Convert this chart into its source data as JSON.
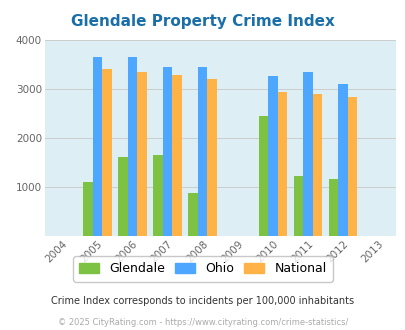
{
  "title": "Glendale Property Crime Index",
  "years": [
    2004,
    2005,
    2006,
    2007,
    2008,
    2009,
    2010,
    2011,
    2012,
    2013
  ],
  "data_years": [
    2005,
    2006,
    2007,
    2008,
    2010,
    2011,
    2012
  ],
  "glendale": [
    1100,
    1600,
    1650,
    880,
    2450,
    1220,
    1160
  ],
  "ohio": [
    3650,
    3650,
    3450,
    3450,
    3250,
    3350,
    3100
  ],
  "national": [
    3400,
    3350,
    3280,
    3200,
    2940,
    2900,
    2840
  ],
  "ylim": [
    0,
    4000
  ],
  "yticks": [
    0,
    1000,
    2000,
    3000,
    4000
  ],
  "color_glendale": "#7dc242",
  "color_ohio": "#4da6ff",
  "color_national": "#ffb347",
  "bg_color": "#ddeef4",
  "title_color": "#1a6fa8",
  "subtitle": "Crime Index corresponds to incidents per 100,000 inhabitants",
  "footer": "© 2025 CityRating.com - https://www.cityrating.com/crime-statistics/",
  "subtitle_color": "#333333",
  "footer_color": "#aaaaaa",
  "bar_width": 0.27,
  "grid_color": "#cccccc"
}
